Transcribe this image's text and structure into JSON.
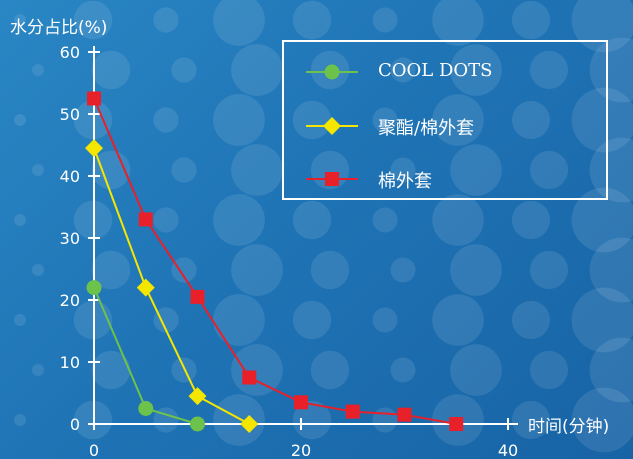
{
  "chart_data": {
    "type": "line",
    "title": "",
    "ylabel": "水分占比(%)",
    "xlabel": "时间(分钟)",
    "xlim": [
      0,
      40
    ],
    "ylim": [
      0,
      60
    ],
    "x_ticks": [
      0,
      20,
      40
    ],
    "y_ticks": [
      0,
      10,
      20,
      30,
      40,
      50,
      60
    ],
    "grid": false,
    "legend_position": "top-right",
    "series": [
      {
        "name": "COOL DOTS",
        "color": "#6cc24a",
        "marker": "circle",
        "points": [
          [
            0,
            22
          ],
          [
            5,
            2.5
          ],
          [
            10,
            0
          ]
        ]
      },
      {
        "name": "聚酯/棉外套",
        "color": "#f5e600",
        "marker": "diamond",
        "points": [
          [
            0,
            44.5
          ],
          [
            5,
            22
          ],
          [
            10,
            4.5
          ],
          [
            15,
            0
          ]
        ]
      },
      {
        "name": "棉外套",
        "color": "#e8202a",
        "marker": "square",
        "points": [
          [
            0,
            52.5
          ],
          [
            5,
            33
          ],
          [
            10,
            20.5
          ],
          [
            15,
            7.5
          ],
          [
            20,
            3.5
          ],
          [
            25,
            2
          ],
          [
            30,
            1.5
          ],
          [
            35,
            0
          ]
        ]
      }
    ]
  }
}
